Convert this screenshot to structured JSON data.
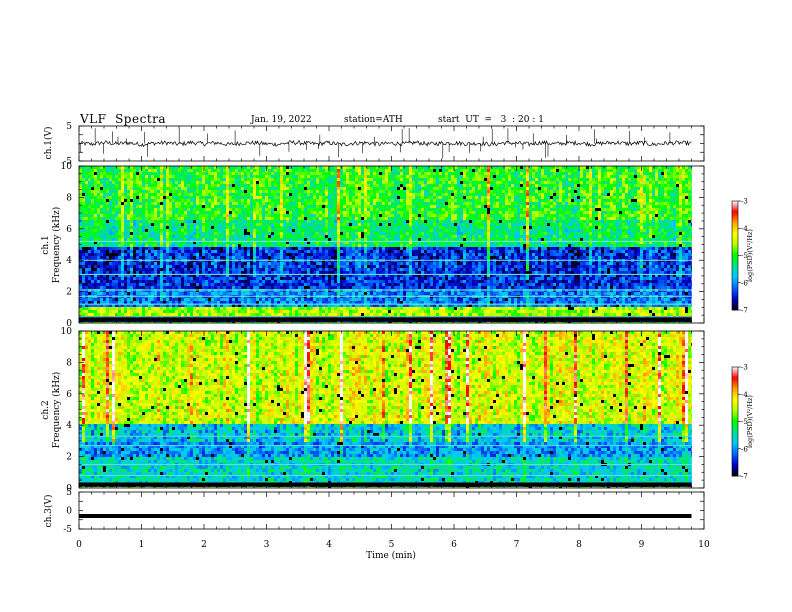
{
  "header": {
    "title": "VLF  Spectra",
    "date": "Jan. 19, 2022",
    "station": "station=ATH",
    "start_ut": "start  UT  =   3  : 20 : 1"
  },
  "chart_data": [
    {
      "type": "line",
      "panel": "ch1-waveform",
      "ylabel": "ch.1(V)",
      "ylim": [
        -5,
        5
      ],
      "yticks": [
        "5",
        "-5"
      ],
      "xlim": [
        0,
        10
      ],
      "data_extent_min": [
        0,
        9.8
      ],
      "series": [
        {
          "x": [
            0,
            0.2,
            0.4,
            0.6,
            0.8,
            1.0,
            1.2,
            1.4,
            1.6,
            1.8,
            2.0,
            2.2,
            2.4,
            2.6,
            2.8,
            3.0,
            3.2,
            3.4,
            3.6,
            3.8,
            4.0,
            4.2,
            4.4,
            4.6,
            4.8,
            5.0,
            5.2,
            5.4,
            5.6,
            5.8,
            6.0,
            6.2,
            6.4,
            6.6,
            6.8,
            7.0,
            7.2,
            7.4,
            7.6,
            7.8,
            8.0,
            8.2,
            8.4,
            8.6,
            8.8,
            9.0,
            9.2,
            9.4,
            9.6,
            9.8
          ],
          "y": [
            0.1,
            -0.2,
            0.3,
            -0.1,
            0.2,
            -0.3,
            0.1,
            0.2,
            -0.2,
            0.3,
            -0.1,
            0.2,
            -0.3,
            0.1,
            0.2,
            -0.1,
            -0.2,
            0.3,
            0.1,
            -0.1,
            0.2,
            -0.3,
            0.1,
            0.2,
            -0.2,
            0.1,
            -0.1,
            0.3,
            -0.2,
            0.1,
            0.2,
            -0.1,
            0.1,
            -0.3,
            0.2,
            0.1,
            -0.2,
            0.3,
            -0.1,
            0.1,
            0.2,
            -0.2,
            0.1,
            0.3,
            -0.1,
            0.2,
            -0.3,
            0.1,
            0.2,
            0.0
          ]
        }
      ]
    },
    {
      "type": "heatmap",
      "panel": "ch1-spectrogram",
      "title": "ch.1",
      "ylabel": "Frequency (kHz)",
      "xlim": [
        0,
        10
      ],
      "ylim": [
        0,
        10
      ],
      "yticks": [
        "0",
        "2",
        "4",
        "6",
        "8",
        "10"
      ],
      "data_extent_min": [
        0,
        9.8
      ],
      "bands_khz": [
        {
          "from": 0.0,
          "to": 0.5,
          "level": -6.8
        },
        {
          "from": 0.5,
          "to": 1.0,
          "level": -4.6
        },
        {
          "from": 1.0,
          "to": 2.2,
          "level": -6.1
        },
        {
          "from": 2.2,
          "to": 4.8,
          "level": -6.4
        },
        {
          "from": 4.8,
          "to": 6.5,
          "level": -5.3
        },
        {
          "from": 6.5,
          "to": 10.0,
          "level": -5.0
        }
      ],
      "colorbar": {
        "label": "log(PSD)(V²/Hz)",
        "min": -7,
        "max": -3,
        "ticks": [
          "-3",
          "-4",
          "-5",
          "-6",
          "-7"
        ],
        "colors": [
          "#000000",
          "#0000c8",
          "#0060ff",
          "#00c8ff",
          "#00e090",
          "#00ff00",
          "#b0ff00",
          "#ffff00",
          "#ffa000",
          "#ff0000",
          "#ffffff"
        ]
      }
    },
    {
      "type": "heatmap",
      "panel": "ch2-spectrogram",
      "title": "ch.2",
      "ylabel": "Frequency (kHz)",
      "xlim": [
        0,
        10
      ],
      "ylim": [
        0,
        10
      ],
      "yticks": [
        "0",
        "2",
        "4",
        "6",
        "8",
        "10"
      ],
      "data_extent_min": [
        0,
        9.8
      ],
      "bands_khz": [
        {
          "from": 0.0,
          "to": 0.3,
          "level": -6.5
        },
        {
          "from": 0.3,
          "to": 2.0,
          "level": -5.6
        },
        {
          "from": 2.0,
          "to": 3.0,
          "level": -6.0
        },
        {
          "from": 3.0,
          "to": 4.0,
          "level": -5.7
        },
        {
          "from": 4.0,
          "to": 10.0,
          "level": -4.4
        }
      ],
      "colorbar": {
        "label": "log(PSD)(V²/Hz)",
        "min": -7,
        "max": -3,
        "ticks": [
          "-3",
          "-4",
          "-5",
          "-6",
          "-7"
        ],
        "colors": [
          "#000000",
          "#0000c8",
          "#0060ff",
          "#00c8ff",
          "#00e090",
          "#00ff00",
          "#b0ff00",
          "#ffff00",
          "#ffa000",
          "#ff0000",
          "#ffffff"
        ]
      }
    },
    {
      "type": "line",
      "panel": "ch3-waveform",
      "ylabel": "ch.3(V)",
      "ylim": [
        -5,
        5
      ],
      "yticks": [
        "5",
        "0",
        "-5"
      ],
      "xlim": [
        0,
        10
      ],
      "data_extent_min": [
        0,
        9.8
      ],
      "series": [
        {
          "x": [
            0,
            9.8
          ],
          "y": [
            -1.5,
            -1.5
          ]
        }
      ]
    }
  ],
  "xaxis": {
    "label": "Time  (min)",
    "ticks": [
      "0",
      "1",
      "2",
      "3",
      "4",
      "5",
      "6",
      "7",
      "8",
      "9",
      "10"
    ]
  }
}
